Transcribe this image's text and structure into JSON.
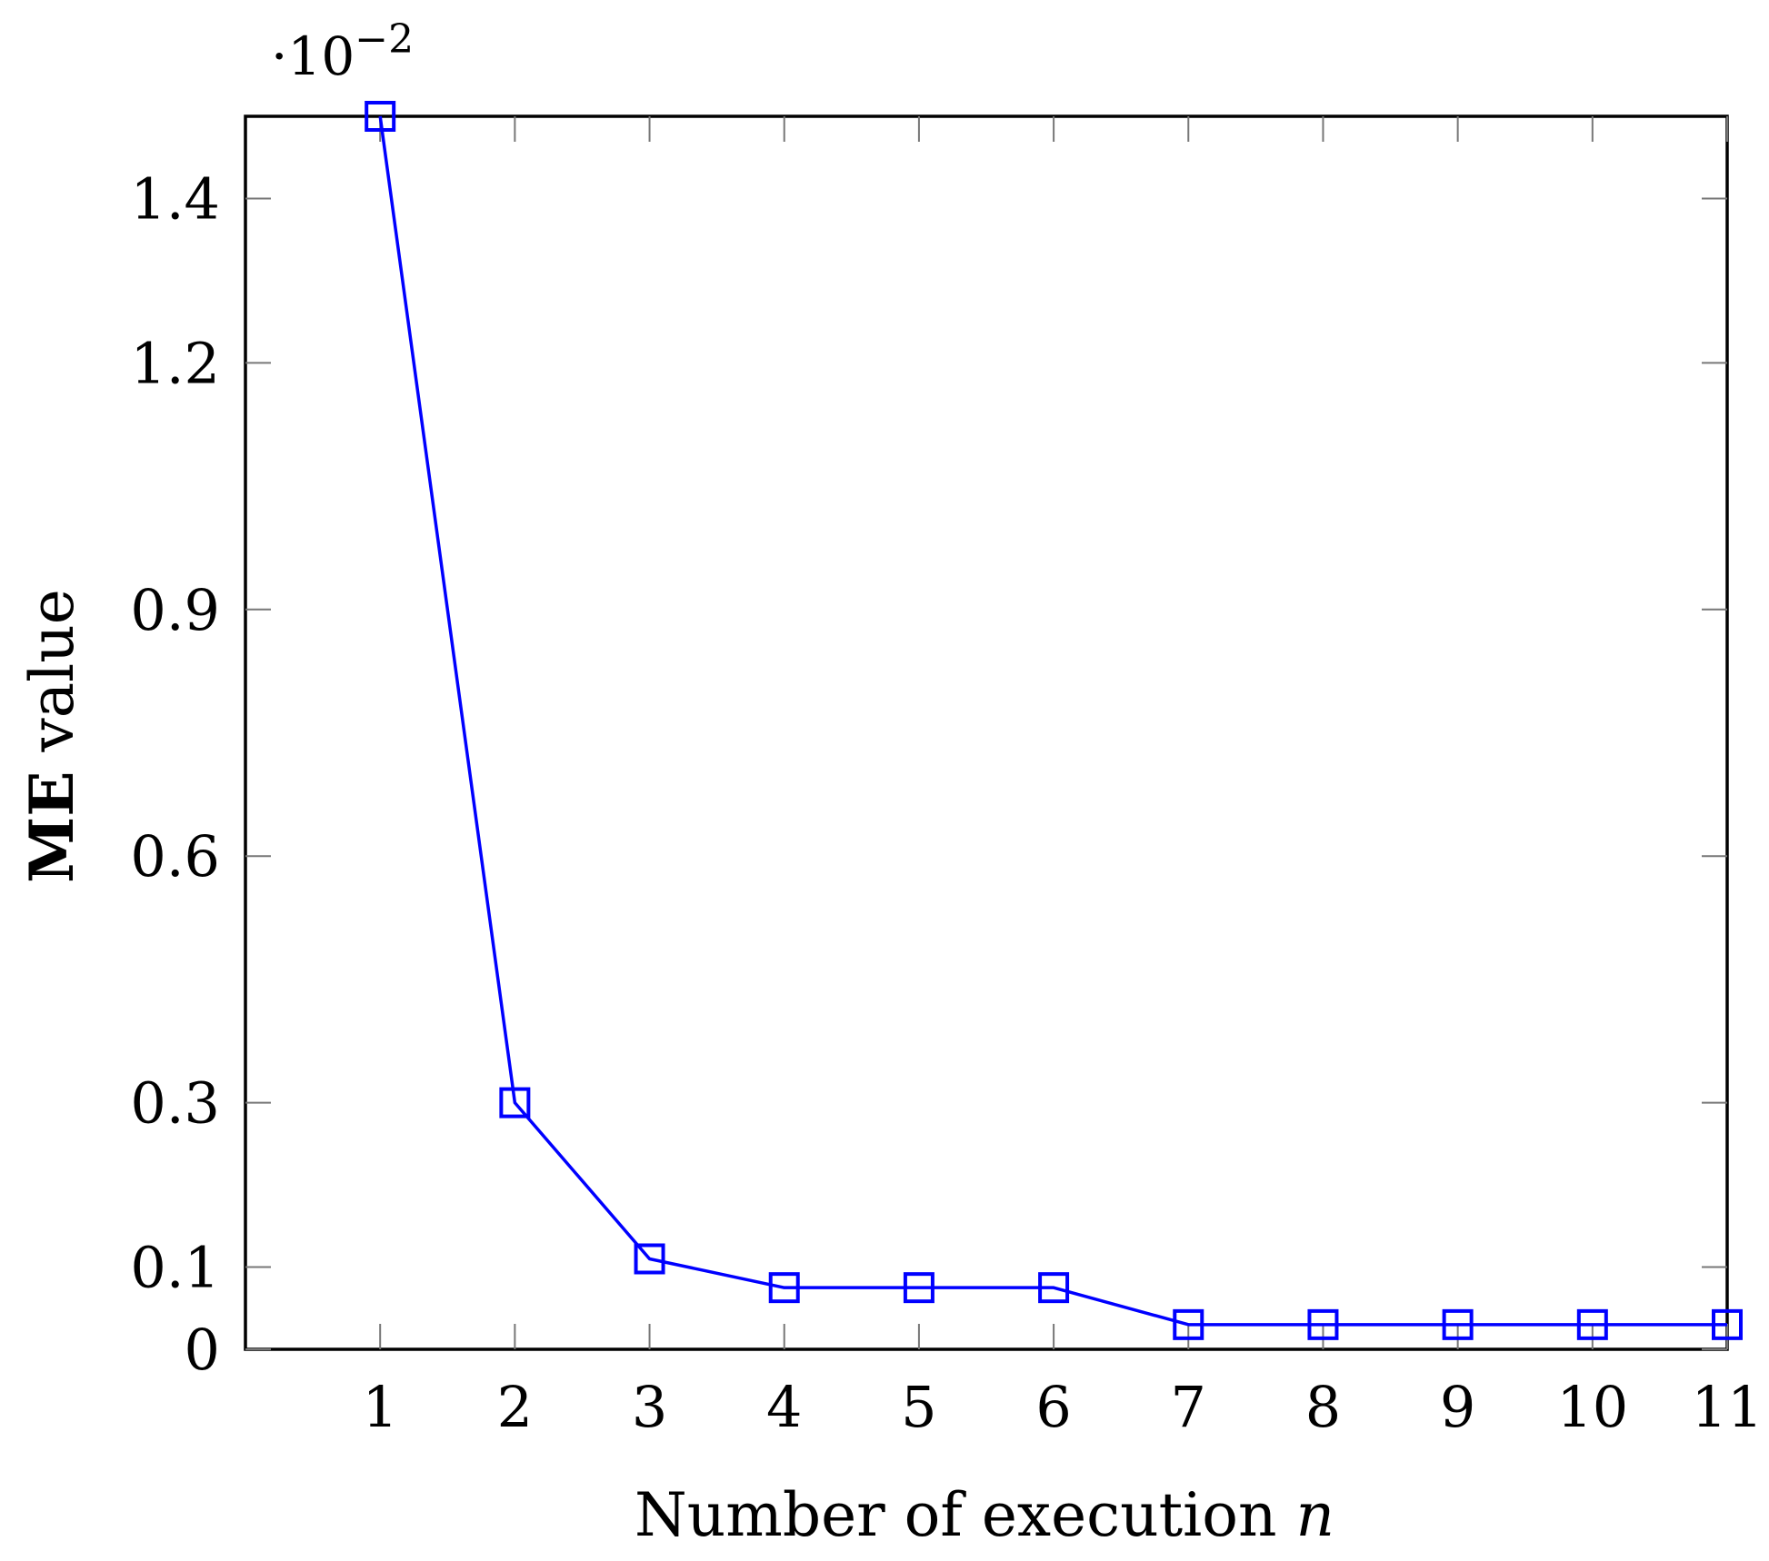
{
  "chart_data": {
    "type": "line",
    "title": "",
    "xlabel": {
      "prefix": "Number of execution ",
      "variable": "n"
    },
    "ylabel": {
      "bold": "ME",
      "rest": " value"
    },
    "y_scale_note": {
      "base": "·10",
      "exponent": "−2"
    },
    "xlim": [
      0,
      11
    ],
    "ylim": [
      0,
      1.5
    ],
    "x_ticks": [
      1,
      2,
      3,
      4,
      5,
      6,
      7,
      8,
      9,
      10,
      11
    ],
    "x_tick_labels": [
      "1",
      "2",
      "3",
      "4",
      "5",
      "6",
      "7",
      "8",
      "9",
      "10",
      "11"
    ],
    "y_ticks": [
      0,
      0.1,
      0.3,
      0.6,
      0.9,
      1.2,
      1.4
    ],
    "y_tick_labels": [
      "0",
      "0.1",
      "0.3",
      "0.6",
      "0.9",
      "1.2",
      "1.4"
    ],
    "grid": false,
    "series": [
      {
        "color": "#0000ff",
        "marker": "square",
        "x": [
          1,
          2,
          3,
          4,
          5,
          6,
          7,
          8,
          9,
          10,
          11
        ],
        "values": [
          1.5,
          0.3,
          0.11,
          0.075,
          0.075,
          0.075,
          0.03,
          0.03,
          0.03,
          0.03,
          0.03
        ]
      }
    ]
  }
}
